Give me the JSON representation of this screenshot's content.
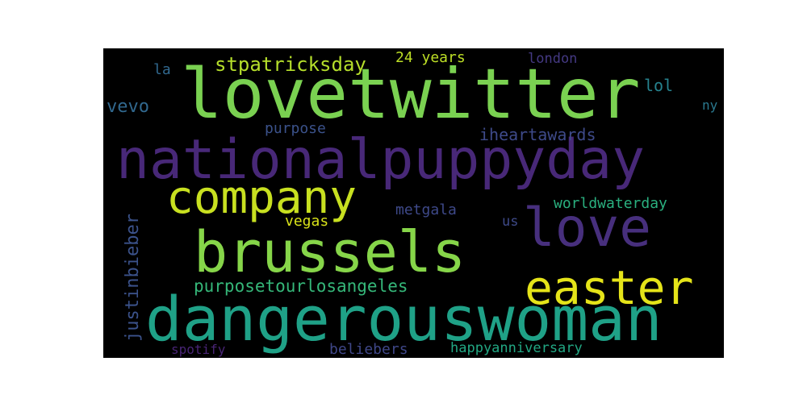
{
  "wordcloud": {
    "background": "#000000",
    "words": [
      {
        "text": "lovetwitter",
        "color": "#7ad151"
      },
      {
        "text": "nationalpuppyday",
        "color": "#482878"
      },
      {
        "text": "dangerouswoman",
        "color": "#1fa187"
      },
      {
        "text": "company",
        "color": "#c8e020"
      },
      {
        "text": "brussels",
        "color": "#86d549"
      },
      {
        "text": "love",
        "color": "#472f7d"
      },
      {
        "text": "easter",
        "color": "#e5e419"
      },
      {
        "text": "purposetourlosangeles",
        "color": "#35b779"
      },
      {
        "text": "stpatricksday",
        "color": "#b5de2b"
      },
      {
        "text": "iheartawards",
        "color": "#3e4a89"
      },
      {
        "text": "worldwaterday",
        "color": "#2ab07f"
      },
      {
        "text": "justinbieber",
        "color": "#3b528b"
      },
      {
        "text": "24 years",
        "color": "#bddf26"
      },
      {
        "text": "london",
        "color": "#443983"
      },
      {
        "text": "vevo",
        "color": "#31688e"
      },
      {
        "text": "purpose",
        "color": "#3b528b"
      },
      {
        "text": "metgala",
        "color": "#3e4989"
      },
      {
        "text": "vegas",
        "color": "#d8e219"
      },
      {
        "text": "beliebers",
        "color": "#3f4788"
      },
      {
        "text": "happyanniversary",
        "color": "#22a884"
      },
      {
        "text": "spotify",
        "color": "#482475"
      },
      {
        "text": "lol",
        "color": "#26828e"
      },
      {
        "text": "la",
        "color": "#31688e"
      },
      {
        "text": "ny",
        "color": "#2a788e"
      },
      {
        "text": "us",
        "color": "#3e4a89"
      }
    ]
  }
}
